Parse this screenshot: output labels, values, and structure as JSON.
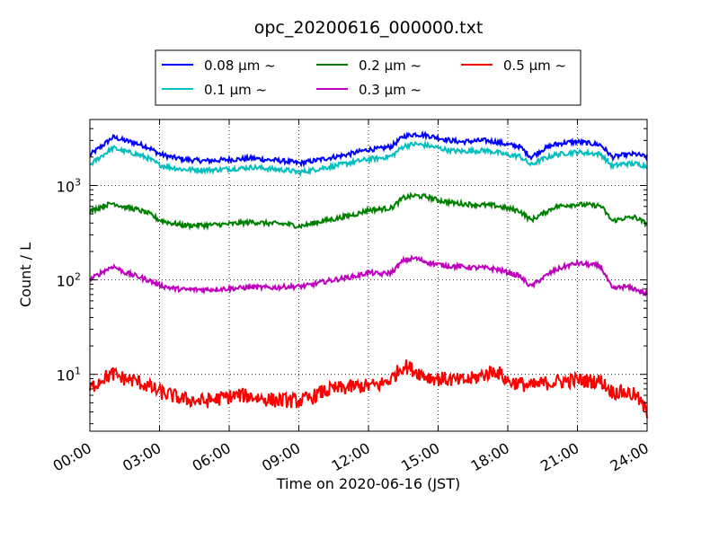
{
  "chart_data": {
    "type": "line",
    "title": "opc_20200616_000000.txt",
    "xlabel": "Time on 2020-06-16 (JST)",
    "ylabel": "Count / L",
    "y_scale": "log",
    "ylim": [
      2.5,
      5000
    ],
    "xlim": [
      "00:00",
      "24:00"
    ],
    "x_ticks": [
      "00:00",
      "03:00",
      "06:00",
      "09:00",
      "12:00",
      "15:00",
      "18:00",
      "21:00",
      "24:00"
    ],
    "y_ticks": [
      {
        "value": 10,
        "base": "10",
        "exp": "1"
      },
      {
        "value": 100,
        "base": "10",
        "exp": "2"
      },
      {
        "value": 1000,
        "base": "10",
        "exp": "3"
      }
    ],
    "grid": true,
    "legend_position": "top-center",
    "x": [
      "00:00",
      "00:30",
      "01:00",
      "01:30",
      "02:00",
      "02:30",
      "03:00",
      "03:30",
      "04:00",
      "04:30",
      "05:00",
      "05:30",
      "06:00",
      "06:30",
      "07:00",
      "07:30",
      "08:00",
      "08:30",
      "09:00",
      "09:30",
      "10:00",
      "10:30",
      "11:00",
      "11:30",
      "12:00",
      "12:30",
      "13:00",
      "13:30",
      "14:00",
      "14:30",
      "15:00",
      "15:30",
      "16:00",
      "16:30",
      "17:00",
      "17:30",
      "18:00",
      "18:30",
      "19:00",
      "19:30",
      "20:00",
      "20:30",
      "21:00",
      "21:30",
      "22:00",
      "22:30",
      "23:00",
      "23:30",
      "24:00"
    ],
    "series": [
      {
        "name": "0.08 μm ~",
        "color": "#0000ff",
        "values": [
          2100,
          2600,
          3250,
          3000,
          2800,
          2550,
          2150,
          2000,
          1900,
          1850,
          1820,
          1850,
          1880,
          1900,
          1950,
          1880,
          1850,
          1800,
          1720,
          1800,
          1900,
          2000,
          2100,
          2250,
          2400,
          2450,
          2600,
          3300,
          3500,
          3400,
          3200,
          3000,
          2900,
          2950,
          3000,
          2900,
          2700,
          2600,
          2000,
          2400,
          2700,
          2850,
          2900,
          2800,
          2700,
          2000,
          2100,
          2150,
          2000
        ]
      },
      {
        "name": "0.1 μm ~",
        "color": "#00bfbf",
        "values": [
          1650,
          2050,
          2500,
          2300,
          2150,
          1950,
          1650,
          1550,
          1480,
          1470,
          1460,
          1470,
          1500,
          1520,
          1560,
          1520,
          1480,
          1450,
          1380,
          1440,
          1530,
          1600,
          1700,
          1800,
          1900,
          1950,
          2050,
          2600,
          2750,
          2650,
          2500,
          2350,
          2300,
          2320,
          2350,
          2250,
          2100,
          2050,
          1650,
          1900,
          2100,
          2200,
          2250,
          2200,
          2150,
          1600,
          1700,
          1700,
          1600
        ]
      },
      {
        "name": "0.2 μm ~",
        "color": "#008000",
        "values": [
          530,
          600,
          650,
          590,
          560,
          510,
          430,
          400,
          380,
          380,
          380,
          385,
          390,
          400,
          410,
          400,
          395,
          390,
          370,
          390,
          420,
          440,
          470,
          500,
          550,
          560,
          580,
          740,
          780,
          760,
          700,
          660,
          640,
          630,
          620,
          610,
          570,
          540,
          430,
          500,
          590,
          620,
          630,
          620,
          610,
          420,
          450,
          460,
          390
        ]
      },
      {
        "name": "0.3 μm ~",
        "color": "#bf00bf",
        "values": [
          100,
          120,
          140,
          120,
          110,
          100,
          88,
          82,
          79,
          79,
          79,
          80,
          81,
          82,
          84,
          83,
          83,
          85,
          85,
          88,
          95,
          100,
          105,
          110,
          120,
          115,
          120,
          160,
          170,
          155,
          145,
          140,
          138,
          135,
          134,
          130,
          120,
          110,
          85,
          105,
          125,
          140,
          150,
          145,
          140,
          80,
          85,
          80,
          70
        ]
      },
      {
        "name": "0.5 μm ~",
        "color": "#ff0000",
        "values": [
          7,
          9,
          10,
          9,
          8.5,
          7.5,
          6.5,
          6,
          5.5,
          5.3,
          5.2,
          5.5,
          5.8,
          6,
          5.8,
          5.5,
          5.3,
          5.3,
          5.2,
          5.6,
          6.5,
          7,
          7.2,
          7.5,
          7.5,
          7.8,
          9,
          12.5,
          11,
          9.5,
          9,
          8.8,
          8.5,
          9,
          10,
          11,
          8.5,
          8,
          7.5,
          8,
          8.3,
          8.5,
          8.7,
          8.5,
          8.5,
          6.5,
          6.5,
          6,
          4
        ]
      }
    ]
  }
}
